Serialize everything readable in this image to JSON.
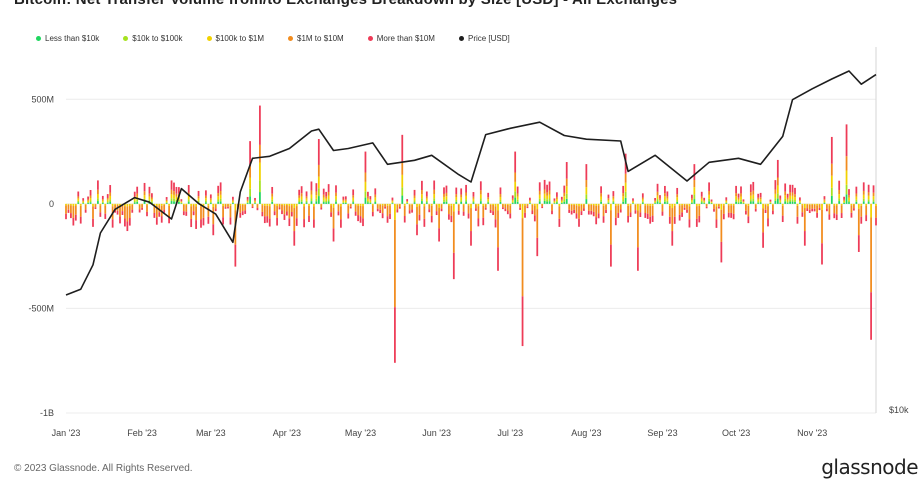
{
  "header": {
    "title": "Bitcoin: Net Transfer Volume from/to Exchanges Breakdown by Size [USD] - All Exchanges"
  },
  "footer": {
    "copyright": "© 2023 Glassnode. All Rights Reserved.",
    "brand": "glassnode"
  },
  "colors": {
    "background": "#ffffff",
    "grid": "#ececec",
    "price": "#1e1e1e",
    "lt10k": "#1fd65f",
    "k10_100k": "#a6e21f",
    "k100_1m": "#f2d200",
    "m1_10m": "#f28c1e",
    "gt10m": "#ee3b57"
  },
  "chart_data": {
    "type": "bar",
    "title": "Bitcoin: Net Transfer Volume from/to Exchanges Breakdown by Size [USD] - All Exchanges",
    "stacked": true,
    "legend": [
      "Less than $10k",
      "$10k to $100k",
      "$100k to $1M",
      "$1M to $10M",
      "More than $10M",
      "Price [USD]"
    ],
    "legend_position": "top-left",
    "grid": true,
    "x_range": [
      "2023-01-01",
      "2023-11-27"
    ],
    "x_ticks": [
      "Jan '23",
      "Feb '23",
      "Mar '23",
      "Apr '23",
      "May '23",
      "Jun '23",
      "Jul '23",
      "Aug '23",
      "Sep '23",
      "Oct '23",
      "Nov '23"
    ],
    "y_ticks": [
      "500M",
      "0",
      "-500M",
      "-1B"
    ],
    "ylim": [
      -1000000000,
      750000000
    ],
    "right_axis_label": "$10k",
    "right_axis_scale": "log",
    "net_flow_usd_m": [
      {
        "date": "2023-01-05",
        "net": -80
      },
      {
        "date": "2023-01-12",
        "net": -110
      },
      {
        "date": "2023-01-19",
        "net": 90
      },
      {
        "date": "2023-01-26",
        "net": -130
      },
      {
        "date": "2023-02-02",
        "net": 100
      },
      {
        "date": "2023-02-09",
        "net": -90
      },
      {
        "date": "2023-02-16",
        "net": 80
      },
      {
        "date": "2023-02-23",
        "net": -120
      },
      {
        "date": "2023-03-02",
        "net": -150
      },
      {
        "date": "2023-03-11",
        "net": -300
      },
      {
        "date": "2023-03-17",
        "net": 300
      },
      {
        "date": "2023-03-21",
        "net": 470
      },
      {
        "date": "2023-04-04",
        "net": -200
      },
      {
        "date": "2023-04-14",
        "net": 310
      },
      {
        "date": "2023-04-20",
        "net": -180
      },
      {
        "date": "2023-05-03",
        "net": 250
      },
      {
        "date": "2023-05-15",
        "net": -760
      },
      {
        "date": "2023-05-18",
        "net": 330
      },
      {
        "date": "2023-05-24",
        "net": -150
      },
      {
        "date": "2023-06-02",
        "net": -180
      },
      {
        "date": "2023-06-08",
        "net": -360
      },
      {
        "date": "2023-06-15",
        "net": -200
      },
      {
        "date": "2023-06-26",
        "net": -320
      },
      {
        "date": "2023-07-03",
        "net": 250
      },
      {
        "date": "2023-07-06",
        "net": -680
      },
      {
        "date": "2023-07-12",
        "net": -250
      },
      {
        "date": "2023-07-24",
        "net": 200
      },
      {
        "date": "2023-08-01",
        "net": 190
      },
      {
        "date": "2023-08-11",
        "net": -300
      },
      {
        "date": "2023-08-17",
        "net": 240
      },
      {
        "date": "2023-08-22",
        "net": -320
      },
      {
        "date": "2023-09-05",
        "net": -200
      },
      {
        "date": "2023-09-14",
        "net": 190
      },
      {
        "date": "2023-09-25",
        "net": -280
      },
      {
        "date": "2023-10-12",
        "net": -210
      },
      {
        "date": "2023-10-18",
        "net": 210
      },
      {
        "date": "2023-10-29",
        "net": -200
      },
      {
        "date": "2023-11-05",
        "net": -290
      },
      {
        "date": "2023-11-09",
        "net": 320
      },
      {
        "date": "2023-11-15",
        "net": 380
      },
      {
        "date": "2023-11-20",
        "net": -230
      },
      {
        "date": "2023-11-25",
        "net": -650
      }
    ],
    "price_usd": [
      {
        "date": "2023-01-01",
        "value": 16550
      },
      {
        "date": "2023-01-07",
        "value": 16900
      },
      {
        "date": "2023-01-12",
        "value": 18500
      },
      {
        "date": "2023-01-15",
        "value": 20800
      },
      {
        "date": "2023-01-21",
        "value": 22700
      },
      {
        "date": "2023-01-29",
        "value": 23700
      },
      {
        "date": "2023-02-04",
        "value": 23300
      },
      {
        "date": "2023-02-13",
        "value": 21900
      },
      {
        "date": "2023-02-17",
        "value": 24500
      },
      {
        "date": "2023-02-24",
        "value": 23200
      },
      {
        "date": "2023-03-03",
        "value": 22300
      },
      {
        "date": "2023-03-10",
        "value": 20100
      },
      {
        "date": "2023-03-13",
        "value": 24200
      },
      {
        "date": "2023-03-18",
        "value": 27400
      },
      {
        "date": "2023-03-25",
        "value": 27600
      },
      {
        "date": "2023-04-02",
        "value": 28400
      },
      {
        "date": "2023-04-11",
        "value": 30300
      },
      {
        "date": "2023-04-14",
        "value": 30500
      },
      {
        "date": "2023-04-20",
        "value": 28200
      },
      {
        "date": "2023-04-26",
        "value": 28400
      },
      {
        "date": "2023-05-06",
        "value": 29000
      },
      {
        "date": "2023-05-12",
        "value": 26800
      },
      {
        "date": "2023-05-23",
        "value": 27200
      },
      {
        "date": "2023-05-30",
        "value": 27700
      },
      {
        "date": "2023-06-10",
        "value": 25800
      },
      {
        "date": "2023-06-15",
        "value": 25100
      },
      {
        "date": "2023-06-21",
        "value": 29900
      },
      {
        "date": "2023-07-01",
        "value": 30600
      },
      {
        "date": "2023-07-13",
        "value": 31300
      },
      {
        "date": "2023-07-23",
        "value": 29800
      },
      {
        "date": "2023-08-01",
        "value": 29400
      },
      {
        "date": "2023-08-15",
        "value": 29200
      },
      {
        "date": "2023-08-18",
        "value": 26100
      },
      {
        "date": "2023-08-29",
        "value": 27700
      },
      {
        "date": "2023-09-11",
        "value": 25200
      },
      {
        "date": "2023-09-20",
        "value": 27000
      },
      {
        "date": "2023-10-02",
        "value": 27400
      },
      {
        "date": "2023-10-11",
        "value": 26800
      },
      {
        "date": "2023-10-20",
        "value": 29700
      },
      {
        "date": "2023-10-24",
        "value": 34000
      },
      {
        "date": "2023-11-01",
        "value": 35400
      },
      {
        "date": "2023-11-09",
        "value": 36700
      },
      {
        "date": "2023-11-16",
        "value": 37800
      },
      {
        "date": "2023-11-21",
        "value": 36000
      },
      {
        "date": "2023-11-27",
        "value": 37300
      }
    ]
  }
}
